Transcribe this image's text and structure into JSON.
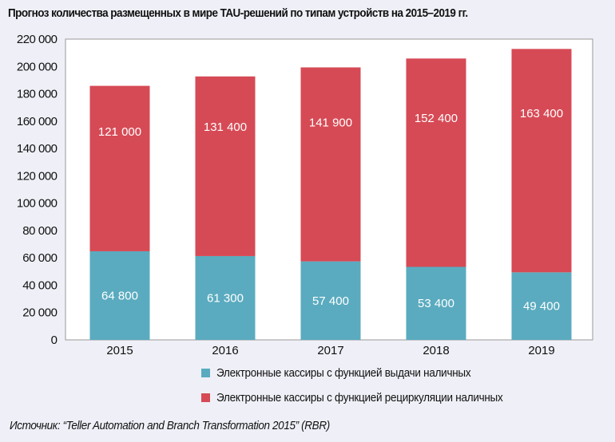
{
  "title": "Прогноз количества размещенных в мире TAU-решений по типам устройств на 2015–2019 гг.",
  "source": "Источник: “Teller Automation and Branch Transformation 2015” (RBR)",
  "chart_data": {
    "type": "bar",
    "stacked": true,
    "categories": [
      "2015",
      "2016",
      "2017",
      "2018",
      "2019"
    ],
    "series": [
      {
        "name": "Электронные кассиры с функцией выдачи наличных",
        "values": [
          64800,
          61300,
          57400,
          53400,
          49400
        ],
        "labels": [
          "64 800",
          "61 300",
          "57 400",
          "53 400",
          "49 400"
        ],
        "color": "#5aabbf"
      },
      {
        "name": "Электронные кассиры с функцией рециркуляции наличных",
        "values": [
          121000,
          131400,
          141900,
          152400,
          163400
        ],
        "labels": [
          "121 000",
          "131 400",
          "141 900",
          "152 400",
          "163 400"
        ],
        "color": "#d64a55"
      }
    ],
    "ylim": [
      0,
      220000
    ],
    "yticks": [
      "0",
      "20 000",
      "40 000",
      "60 000",
      "80 000",
      "100 000",
      "120 000",
      "140 000",
      "160 000",
      "180 000",
      "200 000",
      "220 000"
    ],
    "grid": false,
    "legend_position": "bottom"
  }
}
